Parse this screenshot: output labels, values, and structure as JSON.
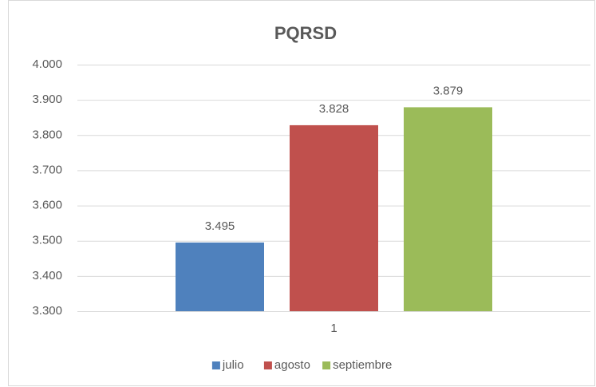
{
  "chart_data": {
    "type": "bar",
    "title": "PQRSD",
    "categories": [
      "1"
    ],
    "series": [
      {
        "name": "julio",
        "color": "#4f81bd",
        "values": [
          3495
        ],
        "value_labels": [
          "3.495"
        ]
      },
      {
        "name": "agosto",
        "color": "#c0504d",
        "values": [
          3828
        ],
        "value_labels": [
          "3.828"
        ]
      },
      {
        "name": "septiembre",
        "color": "#9bbb59",
        "values": [
          3879
        ],
        "value_labels": [
          "3.879"
        ]
      }
    ],
    "ylim": [
      3300,
      4000
    ],
    "yticks": [
      {
        "value": 3300,
        "label": "3.300"
      },
      {
        "value": 3400,
        "label": "3.400"
      },
      {
        "value": 3500,
        "label": "3.500"
      },
      {
        "value": 3600,
        "label": "3.600"
      },
      {
        "value": 3700,
        "label": "3.700"
      },
      {
        "value": 3800,
        "label": "3.800"
      },
      {
        "value": 3900,
        "label": "3.900"
      },
      {
        "value": 4000,
        "label": "4.000"
      }
    ],
    "grid": true,
    "legend": "bottom"
  }
}
